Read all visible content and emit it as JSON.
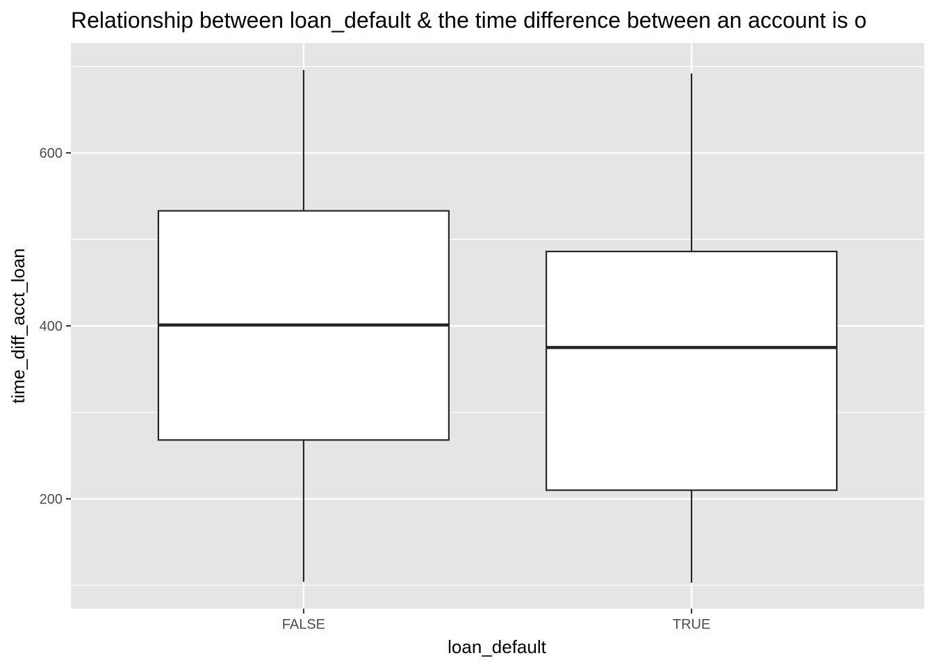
{
  "chart_data": {
    "type": "box",
    "title": "Relationship between loan_default & the time difference between an account is o",
    "xlabel": "loan_default",
    "ylabel": "time_diff_acct_loan",
    "categories": [
      "FALSE",
      "TRUE"
    ],
    "boxes": [
      {
        "category": "FALSE",
        "min": 104,
        "q1": 268,
        "median": 401,
        "q3": 533,
        "max": 696
      },
      {
        "category": "TRUE",
        "min": 103,
        "q1": 210,
        "median": 375,
        "q3": 486,
        "max": 692
      }
    ],
    "y_ticks": [
      200,
      400,
      600
    ],
    "y_minor_ticks": [
      100,
      300,
      500,
      700
    ],
    "ylim": [
      73,
      727
    ],
    "grid": true,
    "colors": {
      "panel": "#e5e5e5",
      "grid": "#ffffff",
      "box_fill": "#ffffff",
      "box_line": "#262626"
    }
  }
}
